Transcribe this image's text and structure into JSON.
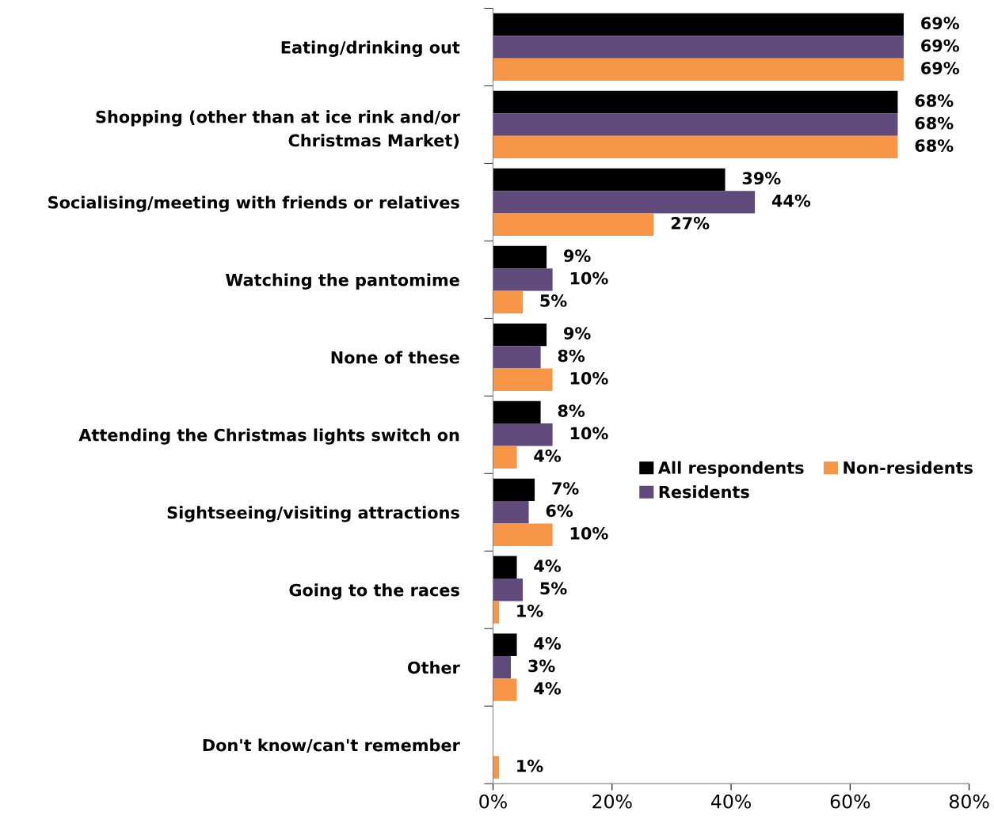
{
  "chart_data": {
    "type": "bar",
    "orientation": "horizontal",
    "categories": [
      "Eating/drinking out",
      "Shopping (other than at ice rink and/or\nChristmas Market)",
      "Socialising/meeting with friends or relatives",
      "Watching the pantomime",
      "None of these",
      "Attending the Christmas lights switch on",
      "Sightseeing/visiting attractions",
      "Going to the races",
      "Other",
      "Don't know/can't remember"
    ],
    "series": [
      {
        "name": "All respondents",
        "color": "#000000",
        "values": [
          69,
          68,
          39,
          9,
          9,
          8,
          7,
          4,
          4,
          0
        ],
        "value_labels": [
          "69%",
          "68%",
          "39%",
          "9%",
          "9%",
          "8%",
          "7%",
          "4%",
          "4%",
          null
        ]
      },
      {
        "name": "Residents",
        "color": "#604a7b",
        "values": [
          69,
          68,
          44,
          10,
          8,
          10,
          6,
          5,
          3,
          0
        ],
        "value_labels": [
          "69%",
          "68%",
          "44%",
          "10%",
          "8%",
          "10%",
          "6%",
          "5%",
          "3%",
          null
        ]
      },
      {
        "name": "Non-residents",
        "color": "#f79646",
        "values": [
          69,
          68,
          27,
          5,
          10,
          4,
          10,
          1,
          4,
          1
        ],
        "value_labels": [
          "69%",
          "68%",
          "27%",
          "5%",
          "10%",
          "4%",
          "10%",
          "1%",
          "4%",
          "1%"
        ]
      }
    ],
    "xlim": [
      0,
      80
    ],
    "xticks": [
      {
        "value": 0,
        "label": "0%"
      },
      {
        "value": 20,
        "label": "20%"
      },
      {
        "value": 40,
        "label": "40%"
      },
      {
        "value": 60,
        "label": "60%"
      },
      {
        "value": 80,
        "label": "80%"
      }
    ],
    "grid": false,
    "legend": "right"
  }
}
